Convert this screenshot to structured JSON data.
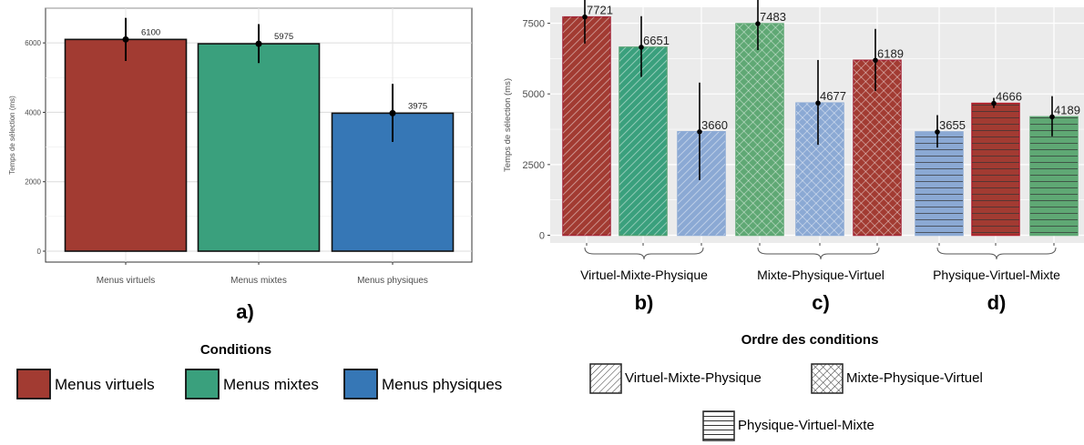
{
  "colors": {
    "virtuel": "#a23b32",
    "mixte": "#3aa07d",
    "physique": "#3677b6",
    "mixte_light": "#5fa874",
    "physique_light": "#8ba9d4",
    "panel_bg": "#ebebeb"
  },
  "chart_data": [
    {
      "type": "bar",
      "panel_label": "a)",
      "categories": [
        "Menus virtuels",
        "Menus mixtes",
        "Menus physiques"
      ],
      "values": [
        6100,
        5975,
        3975
      ],
      "error_bars": [
        [
          5480,
          6720
        ],
        [
          5420,
          6540
        ],
        [
          3150,
          4820
        ]
      ],
      "ylabel": "Temps de sélection (ms)",
      "ylim": [
        0,
        7000
      ],
      "yticks": [
        "0",
        "2000",
        "4000",
        "6000"
      ],
      "grid": true,
      "legend_title": "Conditions",
      "legend": [
        "Menus virtuels",
        "Menus mixtes",
        "Menus physiques"
      ]
    },
    {
      "type": "bar",
      "ylabel": "Temps de sélection (ms)",
      "ylim": [
        0,
        8000
      ],
      "yticks": [
        "0",
        "2500",
        "5000",
        "7500"
      ],
      "grid": true,
      "groups": [
        {
          "label": "Virtuel-Mixte-Physique",
          "panel_label": "b)",
          "pattern": "Virtuel-Mixte-Physique",
          "values": [
            7721,
            6651,
            3660
          ],
          "error_bars": [
            [
              6780,
              8650
            ],
            [
              5600,
              7750
            ],
            [
              1950,
              5400
            ]
          ],
          "value_labels": [
            "7721",
            "6651",
            "3660"
          ]
        },
        {
          "label": "Mixte-Physique-Virtuel",
          "panel_label": "c)",
          "pattern": "Mixte-Physique-Virtuel",
          "values": [
            7483,
            4677,
            6189
          ],
          "error_bars": [
            [
              6550,
              8400
            ],
            [
              3200,
              6200
            ],
            [
              5100,
              7300
            ]
          ],
          "value_labels": [
            "7483",
            "4677",
            "6189"
          ]
        },
        {
          "label": "Physique-Virtuel-Mixte",
          "panel_label": "d)",
          "pattern": "Physique-Virtuel-Mixte",
          "values": [
            3655,
            4666,
            4189
          ],
          "error_bars": [
            [
              3100,
              4250
            ],
            [
              4500,
              4860
            ],
            [
              3500,
              4920
            ]
          ],
          "value_labels": [
            "3655",
            "4666",
            "4189"
          ]
        }
      ],
      "legend_title": "Ordre des conditions",
      "legend": [
        "Virtuel-Mixte-Physique",
        "Mixte-Physique-Virtuel",
        "Physique-Virtuel-Mixte"
      ]
    }
  ]
}
